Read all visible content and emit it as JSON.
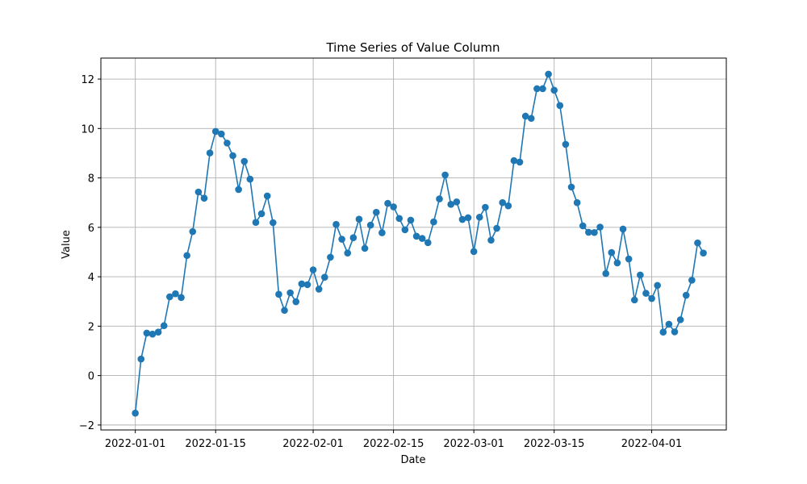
{
  "chart_data": {
    "type": "line",
    "title": "Time Series of Value Column",
    "xlabel": "Date",
    "ylabel": "Value",
    "grid": true,
    "marker": "circle",
    "series_color": "#1f77b4",
    "xlim": [
      "2021-12-26",
      "2022-04-14"
    ],
    "ylim": [
      -2.2,
      12.85
    ],
    "xticks": [
      "2022-01-01",
      "2022-01-15",
      "2022-02-01",
      "2022-02-15",
      "2022-03-01",
      "2022-03-15",
      "2022-04-01"
    ],
    "yticks": [
      -2,
      0,
      2,
      4,
      6,
      8,
      10,
      12
    ],
    "x_start": "2022-01-01",
    "x_step_days": 1,
    "values": [
      -1.52,
      0.67,
      1.72,
      1.68,
      1.76,
      2.02,
      3.19,
      3.31,
      3.16,
      4.86,
      5.83,
      7.43,
      7.18,
      9.01,
      9.88,
      9.78,
      9.41,
      8.9,
      7.53,
      8.67,
      7.95,
      6.2,
      6.55,
      7.27,
      6.19,
      3.29,
      2.64,
      3.35,
      2.99,
      3.71,
      3.68,
      4.28,
      3.5,
      3.98,
      4.79,
      6.12,
      5.52,
      4.96,
      5.58,
      6.33,
      5.15,
      6.09,
      6.61,
      5.78,
      6.97,
      6.83,
      6.36,
      5.9,
      6.29,
      5.64,
      5.55,
      5.38,
      6.22,
      7.15,
      8.12,
      6.93,
      7.03,
      6.32,
      6.39,
      5.02,
      6.41,
      6.81,
      5.48,
      5.96,
      7.0,
      6.87,
      8.7,
      8.64,
      10.5,
      10.41,
      11.61,
      11.61,
      12.2,
      11.55,
      10.93,
      9.36,
      7.63,
      7.0,
      6.06,
      5.8,
      5.79,
      6.01,
      4.13,
      4.98,
      4.56,
      5.93,
      4.72,
      3.06,
      4.07,
      3.33,
      3.12,
      3.65,
      1.76,
      2.08,
      1.77,
      2.26,
      3.25,
      3.86,
      5.37,
      4.96
    ]
  }
}
